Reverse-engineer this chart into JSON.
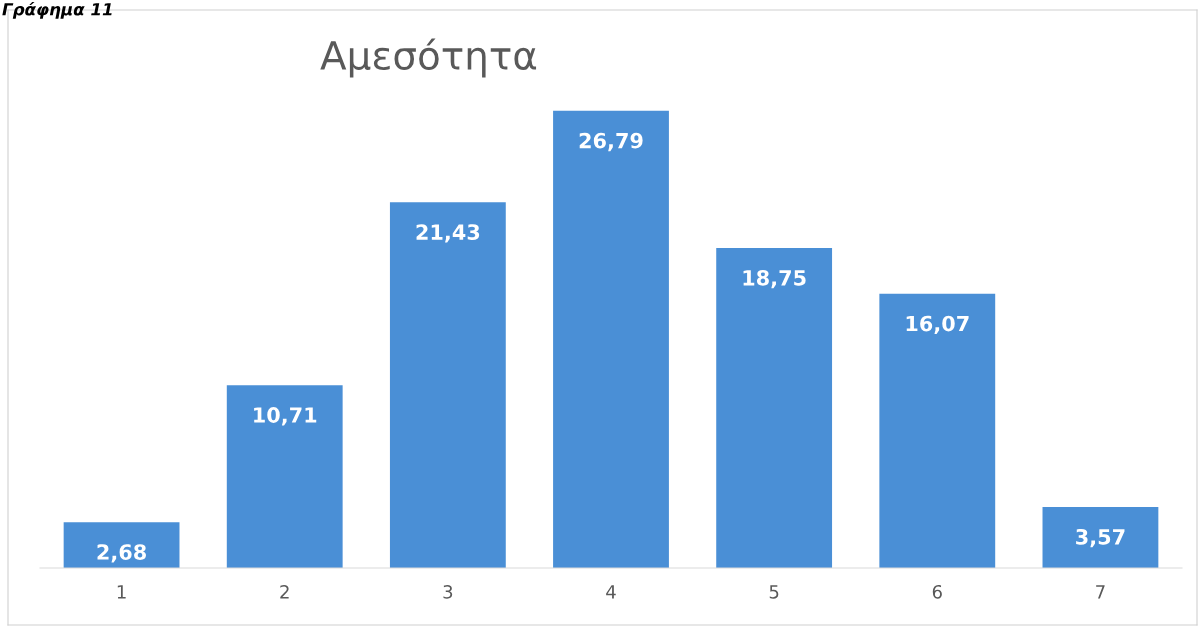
{
  "chart_data": {
    "type": "bar",
    "title": "Αμεσότητα",
    "annotations": [
      "Γράφημα 11"
    ],
    "categories": [
      "1",
      "2",
      "3",
      "4",
      "5",
      "6",
      "7"
    ],
    "values": [
      2.68,
      10.71,
      21.43,
      26.79,
      18.75,
      16.07,
      3.57
    ],
    "value_labels": [
      "2,68",
      "10,71",
      "21,43",
      "26,79",
      "18,75",
      "16,07",
      "3,57"
    ],
    "color": "#4a8fd6",
    "grid": false,
    "legend": false
  }
}
